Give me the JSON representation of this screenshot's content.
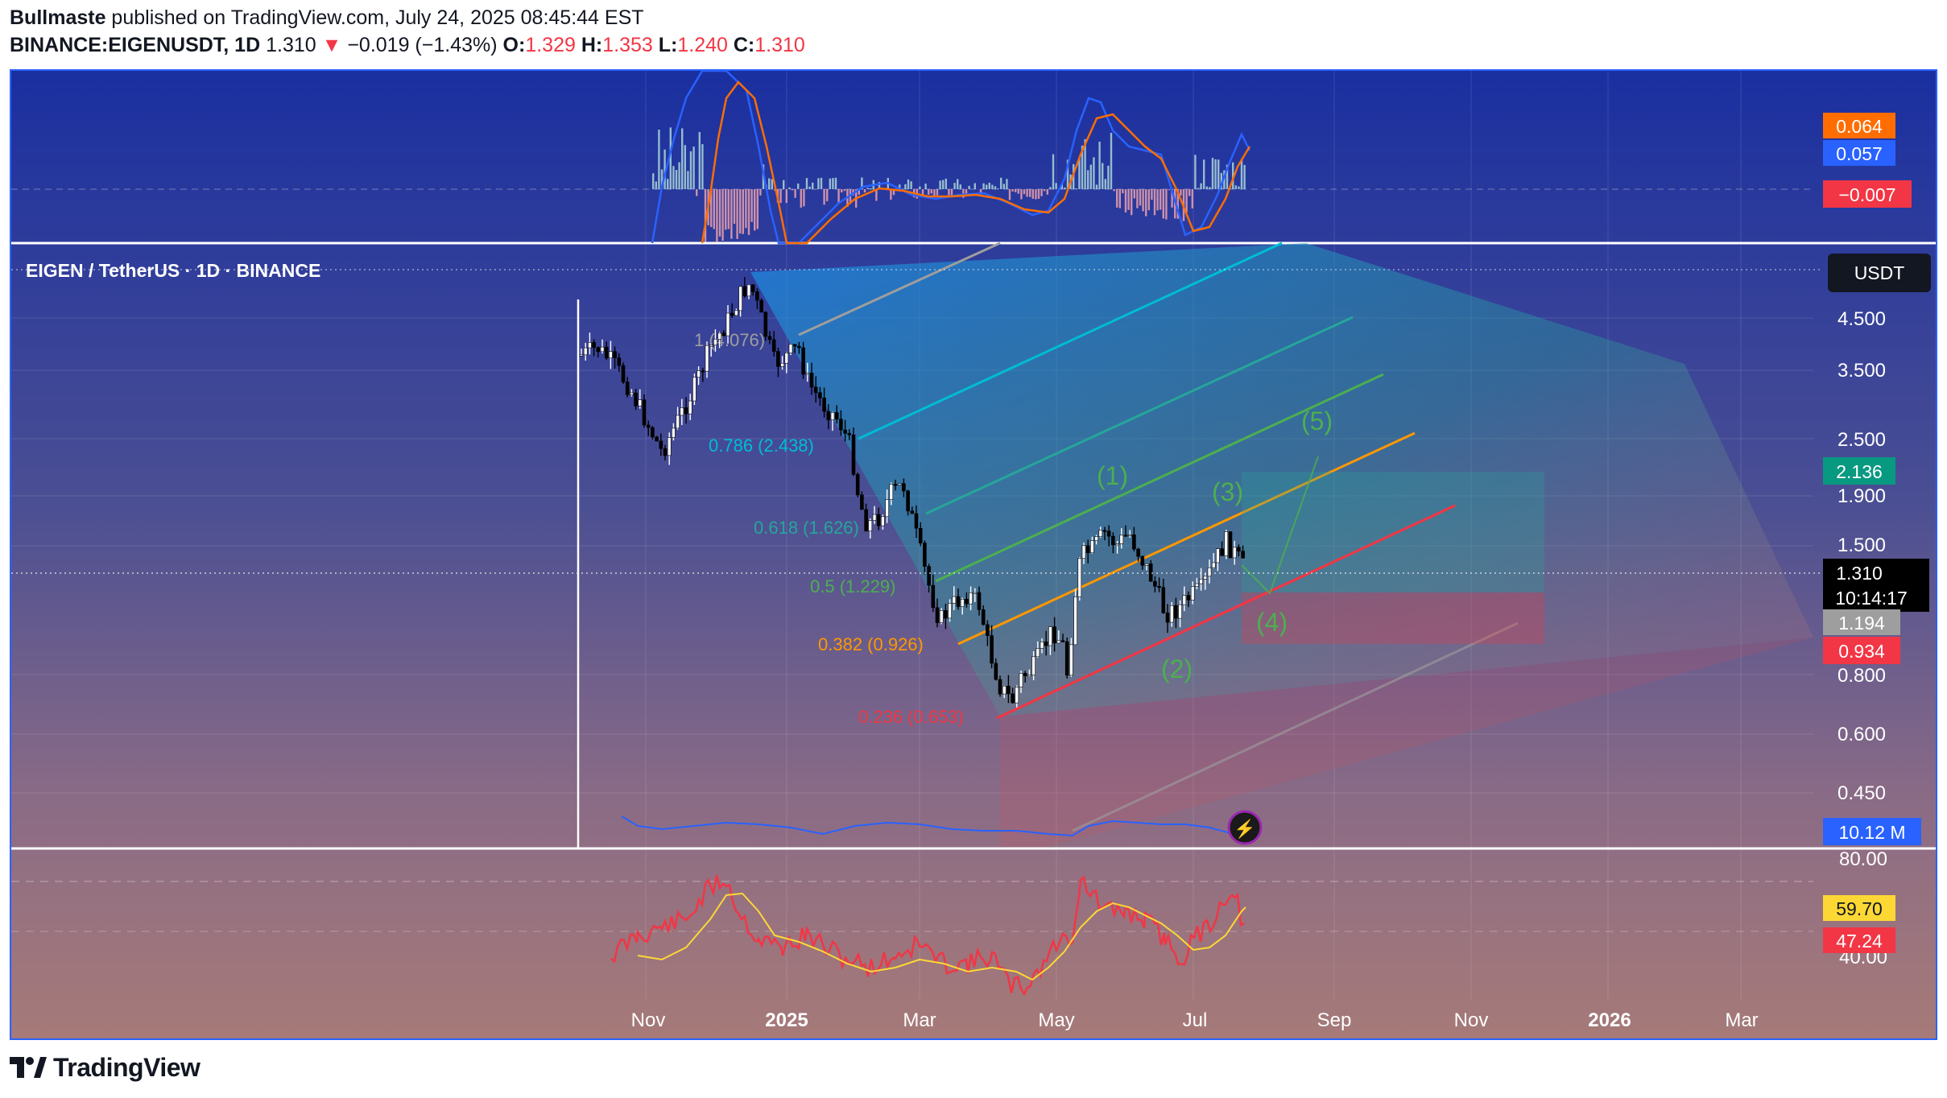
{
  "header": {
    "author": "Bullmaste",
    "published_text": " published on TradingView.com, July 24, 2025 08:45:44 EST",
    "symbol": "BINANCE:EIGENUSDT, 1D",
    "last": "1.310",
    "arrow": "▼",
    "change": "−0.019 (−1.43%)",
    "o_label": "O:",
    "o_value": "1.329",
    "h_label": "H:",
    "h_value": "1.353",
    "l_label": "L:",
    "l_value": "1.240",
    "c_label": "C:",
    "c_value": "1.310"
  },
  "chart_title": "EIGEN / TetherUS · 1D · BINANCE",
  "currency": "USDT",
  "macd_badges": {
    "signal": "0.064",
    "macd": "0.057",
    "hist": "−0.007"
  },
  "price_axis": [
    "4.500",
    "3.500",
    "2.500",
    "1.900",
    "1.500",
    "0.800",
    "0.600",
    "0.450"
  ],
  "price_badges": {
    "target": "2.136",
    "last": "1.310",
    "countdown": "10:14:17",
    "entry": "1.194",
    "stop": "0.934",
    "volume": "10.12 M"
  },
  "rsi_axis": [
    "80.00",
    "40.00"
  ],
  "rsi_badges": {
    "ma": "59.70",
    "rsi": "47.24"
  },
  "time_axis": [
    "Nov",
    "2025",
    "Mar",
    "May",
    "Jul",
    "Sep",
    "Nov",
    "2026",
    "Mar"
  ],
  "fib_labels": [
    "1 (4.076)",
    "0.786 (2.438)",
    "0.618 (1.626)",
    "0.5 (1.229)",
    "0.382 (0.926)",
    "0.236 (0.653)"
  ],
  "wave_labels": [
    "(1)",
    "(2)",
    "(3)",
    "(4)",
    "(5)"
  ],
  "colors": {
    "up": "#ffffff",
    "down": "#000000",
    "accent": "#2962ff",
    "macd_signal": "#ff6d00",
    "macd_line": "#2962ff",
    "hist_neg": "#f23645",
    "rsi": "#f23645",
    "rsi_ma": "#fdd835",
    "wave": "#4caf50"
  },
  "brand": "TradingView"
}
